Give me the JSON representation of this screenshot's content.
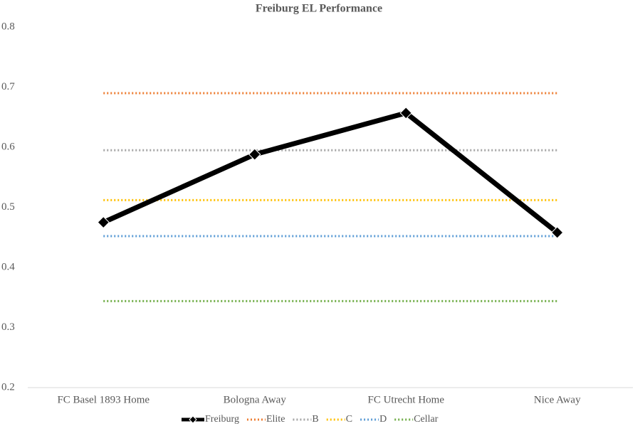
{
  "chart_data": {
    "type": "line",
    "title": "Freiburg EL Performance",
    "categories": [
      "FC Basel 1893 Home",
      "Bologna Away",
      "FC Utrecht Home",
      "Nice Away"
    ],
    "series": [
      {
        "name": "Freiburg",
        "color": "#000000",
        "style": "solid",
        "marker": "diamond",
        "values": [
          0.475,
          0.588,
          0.657,
          0.458
        ]
      },
      {
        "name": "Elite",
        "color": "#ED7D31",
        "style": "dotted",
        "values": [
          0.69,
          0.69,
          0.69,
          0.69
        ]
      },
      {
        "name": "B",
        "color": "#A5A5A5",
        "style": "dotted",
        "values": [
          0.595,
          0.595,
          0.595,
          0.595
        ]
      },
      {
        "name": "C",
        "color": "#FFC000",
        "style": "dotted",
        "values": [
          0.512,
          0.512,
          0.512,
          0.512
        ]
      },
      {
        "name": "D",
        "color": "#5B9BD5",
        "style": "dotted",
        "values": [
          0.452,
          0.452,
          0.452,
          0.452
        ]
      },
      {
        "name": "Cellar",
        "color": "#70AD47",
        "style": "dotted",
        "values": [
          0.344,
          0.344,
          0.344,
          0.344
        ]
      }
    ],
    "ylim": [
      0.2,
      0.8
    ],
    "yticks": [
      0.2,
      0.3,
      0.4,
      0.5,
      0.6,
      0.7,
      0.8
    ],
    "grid": false,
    "legend": "bottom"
  }
}
